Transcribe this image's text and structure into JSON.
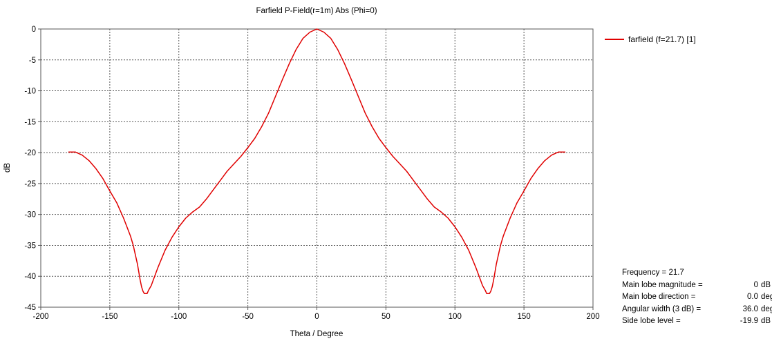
{
  "chart_data": {
    "type": "line",
    "title": "Farfield P-Field(r=1m) Abs (Phi=0)",
    "xlabel": "Theta / Degree",
    "ylabel": "dB",
    "xlim": [
      -200,
      200
    ],
    "ylim": [
      -45,
      0
    ],
    "xticks": [
      -200,
      -150,
      -100,
      -50,
      0,
      50,
      100,
      150,
      200
    ],
    "yticks": [
      0,
      -5,
      -10,
      -15,
      -20,
      -25,
      -30,
      -35,
      -40,
      -45
    ],
    "grid": true,
    "legend_position": "top-right",
    "series": [
      {
        "name": "farfield (f=21.7) [1]",
        "color": "#e00000",
        "x": [
          0,
          5,
          10,
          15,
          20,
          25,
          30,
          35,
          40,
          45,
          50,
          55,
          60,
          65,
          70,
          75,
          80,
          85,
          90,
          95,
          100,
          105,
          110,
          115,
          118,
          120,
          122,
          123,
          124,
          125,
          126,
          127,
          128,
          130,
          133,
          135,
          140,
          145,
          150,
          155,
          160,
          165,
          170,
          175,
          180
        ],
        "y": [
          0,
          -0.5,
          -1.5,
          -3.3,
          -5.6,
          -8.2,
          -10.9,
          -13.6,
          -15.8,
          -17.7,
          -19.2,
          -20.6,
          -21.8,
          -23,
          -24.5,
          -26,
          -27.5,
          -28.8,
          -29.6,
          -30.6,
          -32,
          -33.7,
          -35.8,
          -38.5,
          -40.3,
          -41.5,
          -42.3,
          -42.8,
          -42.8,
          -42.8,
          -42.4,
          -41.7,
          -40.6,
          -38,
          -35,
          -33.5,
          -30.6,
          -28.1,
          -26.2,
          -24.2,
          -22.6,
          -21.3,
          -20.4,
          -19.9,
          -19.9
        ]
      }
    ]
  },
  "info": {
    "rows": [
      {
        "label": "Frequency = 21.7",
        "value": "",
        "unit": ""
      },
      {
        "label": "Main lobe magnitude =",
        "value": "0",
        "unit": "dB"
      },
      {
        "label": "Main lobe direction =",
        "value": "0.0",
        "unit": "deg."
      },
      {
        "label": "Angular width (3 dB) =",
        "value": "36.0",
        "unit": "deg."
      },
      {
        "label": "Side lobe level =",
        "value": "-19.9",
        "unit": "dB"
      }
    ]
  }
}
